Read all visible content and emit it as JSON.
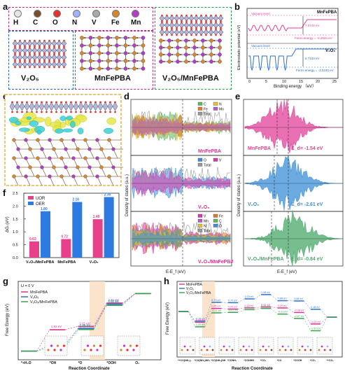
{
  "panels": {
    "a": {
      "label": "a",
      "elements": [
        "H",
        "C",
        "O",
        "N",
        "V",
        "Fe",
        "Mn"
      ],
      "element_colors": [
        "#e6e6e6",
        "#7a4e2d",
        "#e8312b",
        "#9fb3ff",
        "#a8a8a8",
        "#d8882a",
        "#b43cc8"
      ],
      "structures": [
        "V₂O₅",
        "MnFePBA",
        "V₂O₅/MnFePBA"
      ],
      "box_colors": [
        "#2c5fbf",
        "#c22a8f",
        "#2e9a47"
      ]
    },
    "b": {
      "label": "b",
      "ylabel": "Electrostatic potential (eV)",
      "xlabel": "Binding energy （eV）",
      "xticks": [
        "0",
        "5",
        "10",
        "15",
        "20",
        "25"
      ],
      "top": {
        "name": "MnFePBA",
        "vacuum": "Vacuum level",
        "workfunction": "7.0744 eV",
        "fermi": "Fermi energy = -5.2834 eV"
      },
      "bottom": {
        "name": "V₂O₅",
        "vacuum": "Vacuum level",
        "workfunction": "6.7103 eV",
        "fermi": "Fermi energy = -3.0193 eV"
      }
    },
    "c": {
      "label": "c"
    },
    "d": {
      "label": "d",
      "ylabel": "Density of states (a.u.)",
      "xlabel": "E-E_f (eV)",
      "top": {
        "name": "MnFePBA",
        "legend": [
          "C",
          "N",
          "Fe",
          "Mn",
          "Total"
        ]
      },
      "mid": {
        "name": "V₂O₅",
        "legend": [
          "O",
          "V",
          "Total"
        ]
      },
      "bot": {
        "name": "V₂O₅/MnFePBA",
        "legend": [
          "V",
          "Fe",
          "Mn",
          "C",
          "N",
          "O",
          "Total"
        ]
      },
      "legend_colors": {
        "C": "#5fb85f",
        "N": "#e8c030",
        "Fe": "#e07a2a",
        "Mn": "#b060c8",
        "O": "#3a8fd8",
        "V": "#d83aa8",
        "Total": "#9a9a9a"
      }
    },
    "e": {
      "label": "e",
      "ylabel": "Density of states (a.u.)",
      "xlabel": "E-E_f (eV)",
      "top": {
        "name": "MnFePBA",
        "ed": "E_d= -1.54 eV",
        "color": "#e0409a"
      },
      "mid": {
        "name": "V₂O₅",
        "ed": "E_d= -2.61 eV",
        "color": "#3a8fd8"
      },
      "bot": {
        "name": "V₂O₅/MnFePBA",
        "ed": "E_d= -0.84 eV",
        "color": "#4aa86a"
      }
    },
    "f": {
      "label": "f",
      "ylabel": "ΔGᵢ (eV)",
      "legend": [
        "UOR",
        "OER"
      ],
      "colors": [
        "#e8408a",
        "#2d7be0"
      ]
    },
    "g": {
      "label": "g",
      "ylabel": "Free Energy (eV)",
      "xlabel": "Reaction Coordinate",
      "condition": "U = 0 V",
      "legend": [
        "MnFePBA",
        "V₂O₅",
        "V₂O₅/MnFePBA"
      ],
      "colors": [
        "#d8338e",
        "#2d6fd0",
        "#38a14f"
      ],
      "steps": [
        "*+H₂O",
        "*OH",
        "*O",
        "*OOH",
        "O₂"
      ],
      "labels": {
        "oh_mn": "1.83 eV",
        "oh_v": "0.53 eV",
        "oh_mix": "0.34 eV",
        "o_mn": "2.11 eV",
        "o_v": "1.95 eV",
        "o_mix": "1.85 eV",
        "ooh_mn": "4.11 eV",
        "ooh_v": "4.02 eV",
        "ooh_mix": "3.91 eV"
      }
    },
    "h": {
      "label": "h",
      "ylabel": "Free Energy (eV)",
      "xlabel": "Reaction Coordinate",
      "legend": [
        "MnFePBA",
        "V₂O₅",
        "V₂O₅/MnFePBA"
      ],
      "colors": [
        "#d8338e",
        "#2d6fd0",
        "#38a14f"
      ],
      "steps": [
        "*+CO(NH₂)₂",
        "*CO(NH₂)NH₂",
        "*CO(NH₂)NH",
        "*CONH₂",
        "*CONHN",
        "*CO₂",
        "*CO",
        "*COOH",
        "*CO₂",
        "*+CO₂"
      ],
      "labels": {
        "s1_v": "-0.78 eV",
        "s1_mn": "-0.88 eV",
        "s1_mix": "-1.25 eV",
        "s2_v": "0.75 eV",
        "s2_mn": "0.25 eV",
        "s2_mix": "-0.11 eV",
        "s3_v": "0.72 eV",
        "s3_mn": "0.20 eV",
        "s3_mix": "-0.07 eV",
        "s4_v": "1.03 eV",
        "s4_mn": "0.29 eV",
        "s4_mix": "0.15 eV",
        "s5_v": "1.38 eV",
        "s5_mn": "0.37 eV",
        "s5_mix": "0.25 eV",
        "s6_v": "0.88 eV",
        "s6_mn": "0.29 eV",
        "s6_mix": "-0.21 eV",
        "s7_v": "0.86 eV",
        "s7_mn": "-0.08 eV",
        "s7_mix": "-0.57 eV",
        "s8_v": "0.18 eV",
        "s8_mn": "-1.02 eV",
        "s8_mix": "-1.57 eV"
      }
    }
  },
  "chart_data": [
    {
      "type": "bar",
      "panel": "f",
      "categories": [
        "V₂O₅/MnFePBA",
        "MnFePBA",
        "V₂O₅"
      ],
      "series": [
        {
          "name": "UOR",
          "values": [
            0.63,
            0.72,
            1.49
          ]
        },
        {
          "name": "OER",
          "values": [
            1.8,
            2.16,
            2.35
          ]
        }
      ],
      "ylabel": "ΔGᵢ (eV)",
      "ylim": [
        0,
        2.5
      ]
    },
    {
      "type": "line",
      "panel": "g",
      "categories": [
        "*+H₂O",
        "*OH",
        "*O",
        "*OOH",
        "O₂"
      ],
      "series": [
        {
          "name": "MnFePBA",
          "values": [
            0,
            1.83,
            2.11,
            4.11,
            4.92
          ]
        },
        {
          "name": "V₂O₅",
          "values": [
            0,
            0.53,
            1.95,
            4.02,
            4.92
          ]
        },
        {
          "name": "V₂O₅/MnFePBA",
          "values": [
            0,
            0.34,
            1.85,
            3.91,
            4.92
          ]
        }
      ],
      "ylabel": "Free Energy (eV)",
      "xlabel": "Reaction Coordinate"
    },
    {
      "type": "line",
      "panel": "h",
      "categories": [
        "*+CO(NH₂)₂",
        "*CO(NH₂)NH₂",
        "*CO(NH₂)NH",
        "*CONH₂",
        "*CONHN",
        "*CO₂",
        "*CO",
        "*COOH",
        "*CO₂",
        "*+CO₂"
      ],
      "series": [
        {
          "name": "MnFePBA",
          "values": [
            0,
            -0.88,
            0.25,
            0.2,
            0.29,
            0.37,
            0.29,
            -0.08,
            -1.02,
            -0.46
          ]
        },
        {
          "name": "V₂O₅",
          "values": [
            0,
            -0.78,
            0.75,
            0.72,
            1.03,
            1.38,
            0.88,
            0.86,
            0.18,
            -0.46
          ]
        },
        {
          "name": "V₂O₅/MnFePBA",
          "values": [
            0,
            -1.25,
            -0.11,
            -0.07,
            0.15,
            0.25,
            -0.21,
            -0.57,
            -1.57,
            -0.46
          ]
        }
      ],
      "ylabel": "Free Energy (eV)",
      "xlabel": "Reaction Coordinate"
    }
  ]
}
